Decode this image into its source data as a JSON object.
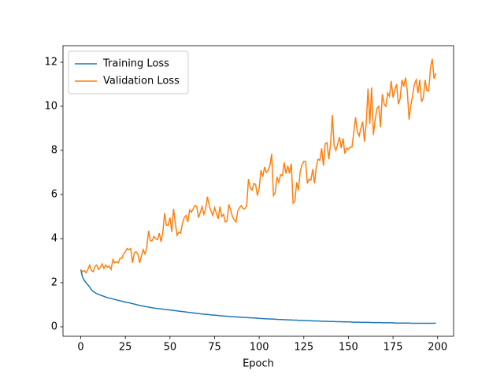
{
  "chart_data": {
    "type": "line",
    "xlabel": "Epoch",
    "x": [
      0,
      1,
      2,
      3,
      4,
      5,
      6,
      7,
      8,
      9,
      10,
      11,
      12,
      13,
      14,
      15,
      16,
      17,
      18,
      19,
      20,
      21,
      22,
      23,
      24,
      25,
      26,
      27,
      28,
      29,
      30,
      31,
      32,
      33,
      34,
      35,
      36,
      37,
      38,
      39,
      40,
      41,
      42,
      43,
      44,
      45,
      46,
      47,
      48,
      49,
      50,
      51,
      52,
      53,
      54,
      55,
      56,
      57,
      58,
      59,
      60,
      61,
      62,
      63,
      64,
      65,
      66,
      67,
      68,
      69,
      70,
      71,
      72,
      73,
      74,
      75,
      76,
      77,
      78,
      79,
      80,
      81,
      82,
      83,
      84,
      85,
      86,
      87,
      88,
      89,
      90,
      91,
      92,
      93,
      94,
      95,
      96,
      97,
      98,
      99,
      100,
      101,
      102,
      103,
      104,
      105,
      106,
      107,
      108,
      109,
      110,
      111,
      112,
      113,
      114,
      115,
      116,
      117,
      118,
      119,
      120,
      121,
      122,
      123,
      124,
      125,
      126,
      127,
      128,
      129,
      130,
      131,
      132,
      133,
      134,
      135,
      136,
      137,
      138,
      139,
      140,
      141,
      142,
      143,
      144,
      145,
      146,
      147,
      148,
      149,
      150,
      151,
      152,
      153,
      154,
      155,
      156,
      157,
      158,
      159,
      160,
      161,
      162,
      163,
      164,
      165,
      166,
      167,
      168,
      169,
      170,
      171,
      172,
      173,
      174,
      175,
      176,
      177,
      178,
      179,
      180,
      181,
      182,
      183,
      184,
      185,
      186,
      187,
      188,
      189,
      190,
      191,
      192,
      193,
      194,
      195,
      196,
      197,
      198,
      199
    ],
    "series": [
      {
        "name": "Training Loss",
        "color": "#1f77b4",
        "values": [
          2.6,
          2.25,
          2.1,
          2.0,
          1.9,
          1.8,
          1.68,
          1.6,
          1.55,
          1.5,
          1.47,
          1.44,
          1.41,
          1.38,
          1.35,
          1.32,
          1.3,
          1.28,
          1.26,
          1.24,
          1.22,
          1.2,
          1.18,
          1.16,
          1.14,
          1.12,
          1.1,
          1.09,
          1.07,
          1.05,
          1.03,
          1.01,
          0.99,
          0.97,
          0.95,
          0.94,
          0.92,
          0.91,
          0.89,
          0.88,
          0.86,
          0.85,
          0.84,
          0.83,
          0.82,
          0.81,
          0.8,
          0.79,
          0.78,
          0.77,
          0.76,
          0.75,
          0.74,
          0.73,
          0.72,
          0.71,
          0.7,
          0.69,
          0.68,
          0.67,
          0.66,
          0.65,
          0.64,
          0.63,
          0.62,
          0.61,
          0.6,
          0.59,
          0.58,
          0.57,
          0.56,
          0.56,
          0.55,
          0.54,
          0.53,
          0.53,
          0.52,
          0.51,
          0.5,
          0.5,
          0.49,
          0.48,
          0.48,
          0.47,
          0.46,
          0.46,
          0.45,
          0.45,
          0.44,
          0.44,
          0.43,
          0.43,
          0.42,
          0.42,
          0.41,
          0.41,
          0.4,
          0.4,
          0.39,
          0.39,
          0.38,
          0.38,
          0.37,
          0.37,
          0.36,
          0.36,
          0.35,
          0.35,
          0.35,
          0.34,
          0.34,
          0.33,
          0.33,
          0.33,
          0.32,
          0.32,
          0.31,
          0.31,
          0.31,
          0.3,
          0.3,
          0.3,
          0.29,
          0.29,
          0.29,
          0.28,
          0.28,
          0.28,
          0.27,
          0.27,
          0.27,
          0.26,
          0.26,
          0.26,
          0.26,
          0.25,
          0.25,
          0.25,
          0.25,
          0.24,
          0.24,
          0.24,
          0.24,
          0.23,
          0.23,
          0.23,
          0.23,
          0.22,
          0.22,
          0.22,
          0.22,
          0.22,
          0.21,
          0.21,
          0.21,
          0.21,
          0.21,
          0.2,
          0.2,
          0.2,
          0.2,
          0.2,
          0.2,
          0.19,
          0.19,
          0.19,
          0.19,
          0.19,
          0.19,
          0.18,
          0.18,
          0.18,
          0.18,
          0.18,
          0.18,
          0.18,
          0.17,
          0.17,
          0.17,
          0.17,
          0.17,
          0.17,
          0.17,
          0.17,
          0.17,
          0.16,
          0.16,
          0.16,
          0.16,
          0.16,
          0.16,
          0.16,
          0.16,
          0.16,
          0.16,
          0.16,
          0.16,
          0.16,
          0.16,
          0.17
        ]
      },
      {
        "name": "Validation Loss",
        "color": "#ff7f0e",
        "values": [
          2.6,
          2.5,
          2.55,
          2.45,
          2.6,
          2.8,
          2.55,
          2.5,
          2.75,
          2.8,
          2.6,
          2.7,
          2.85,
          2.65,
          2.8,
          2.7,
          2.75,
          2.6,
          3.05,
          2.9,
          2.95,
          2.9,
          3.1,
          3.1,
          3.3,
          3.4,
          3.55,
          3.5,
          3.55,
          2.9,
          3.35,
          3.4,
          3.3,
          2.9,
          3.2,
          3.5,
          3.3,
          3.6,
          4.35,
          3.9,
          3.9,
          4.1,
          4.0,
          3.95,
          4.25,
          3.85,
          4.3,
          5.15,
          4.6,
          4.6,
          4.95,
          4.3,
          5.35,
          4.7,
          4.15,
          4.3,
          4.25,
          4.7,
          4.95,
          5.05,
          4.75,
          5.3,
          5.2,
          5.35,
          5.5,
          5.45,
          4.95,
          5.2,
          5.45,
          5.1,
          5.35,
          5.9,
          5.5,
          5.25,
          5.05,
          5.4,
          5.15,
          4.9,
          5.45,
          5.0,
          5.1,
          4.75,
          4.8,
          5.55,
          5.3,
          5.0,
          4.85,
          4.75,
          5.25,
          5.4,
          5.5,
          5.35,
          5.35,
          5.5,
          6.7,
          6.3,
          6.2,
          6.5,
          6.45,
          5.95,
          6.3,
          7.1,
          6.8,
          7.25,
          7.0,
          7.1,
          7.3,
          7.85,
          5.95,
          6.1,
          6.8,
          6.55,
          6.9,
          6.85,
          7.45,
          6.95,
          7.3,
          6.95,
          7.4,
          5.6,
          5.7,
          6.55,
          6.2,
          7.05,
          7.35,
          7.5,
          7.5,
          6.5,
          6.7,
          6.65,
          7.15,
          6.5,
          7.25,
          7.6,
          7.55,
          8.1,
          7.3,
          8.3,
          8.35,
          7.6,
          8.3,
          9.6,
          8.2,
          8.0,
          8.3,
          8.6,
          8.1,
          8.55,
          7.85,
          8.1,
          8.05,
          8.15,
          8.15,
          8.8,
          9.5,
          8.85,
          8.65,
          9.0,
          9.3,
          8.4,
          9.25,
          10.8,
          9.2,
          10.85,
          8.7,
          9.4,
          9.9,
          10.0,
          9.05,
          10.55,
          10.1,
          10.0,
          10.6,
          10.45,
          11.15,
          10.4,
          10.75,
          11.0,
          10.1,
          10.35,
          11.2,
          10.9,
          11.3,
          10.7,
          9.4,
          10.05,
          10.5,
          11.0,
          11.2,
          10.6,
          11.2,
          10.2,
          10.4,
          11.2,
          10.7,
          10.7,
          11.75,
          12.15,
          11.25,
          11.5
        ]
      }
    ],
    "xlim": [
      -9.95,
      208.95
    ],
    "xticks": [
      0,
      25,
      50,
      75,
      100,
      125,
      150,
      175,
      200
    ],
    "ylim": [
      -0.43,
      12.75
    ],
    "yticks": [
      0,
      2,
      4,
      6,
      8,
      10,
      12
    ],
    "legend": "upper left"
  }
}
